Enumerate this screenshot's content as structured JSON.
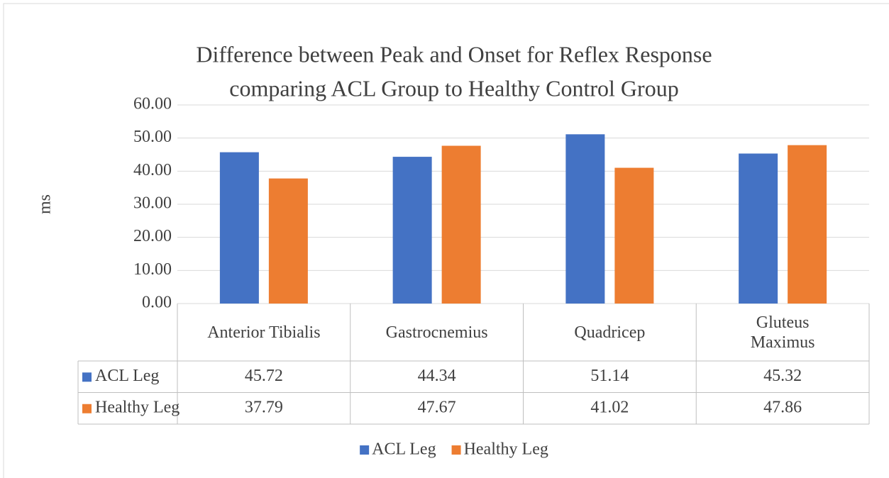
{
  "chart_data": {
    "type": "bar",
    "title": [
      "Difference between Peak and Onset for Reflex Response",
      "comparing ACL Group to Healthy Control Group"
    ],
    "y_label": "ms",
    "categories": [
      "Anterior Tibialis",
      "Gastrocnemius",
      "Quadricep",
      "Gluteus Maximus"
    ],
    "series": [
      {
        "name": "ACL Leg",
        "color": "#4472c4",
        "values": [
          45.72,
          44.34,
          51.14,
          45.32
        ]
      },
      {
        "name": "Healthy Leg",
        "color": "#ed7d31",
        "values": [
          37.79,
          47.67,
          41.02,
          47.86
        ]
      }
    ],
    "ylim": [
      0,
      60
    ],
    "yticks": [
      {
        "value": 0,
        "label": "0.00"
      },
      {
        "value": 10,
        "label": "10.00"
      },
      {
        "value": 20,
        "label": "20.00"
      },
      {
        "value": 30,
        "label": "30.00"
      },
      {
        "value": 40,
        "label": "40.00"
      },
      {
        "value": 50,
        "label": "50.00"
      },
      {
        "value": 60,
        "label": "60.00"
      }
    ],
    "grid": true,
    "legend": "bottom",
    "data_table": true
  }
}
